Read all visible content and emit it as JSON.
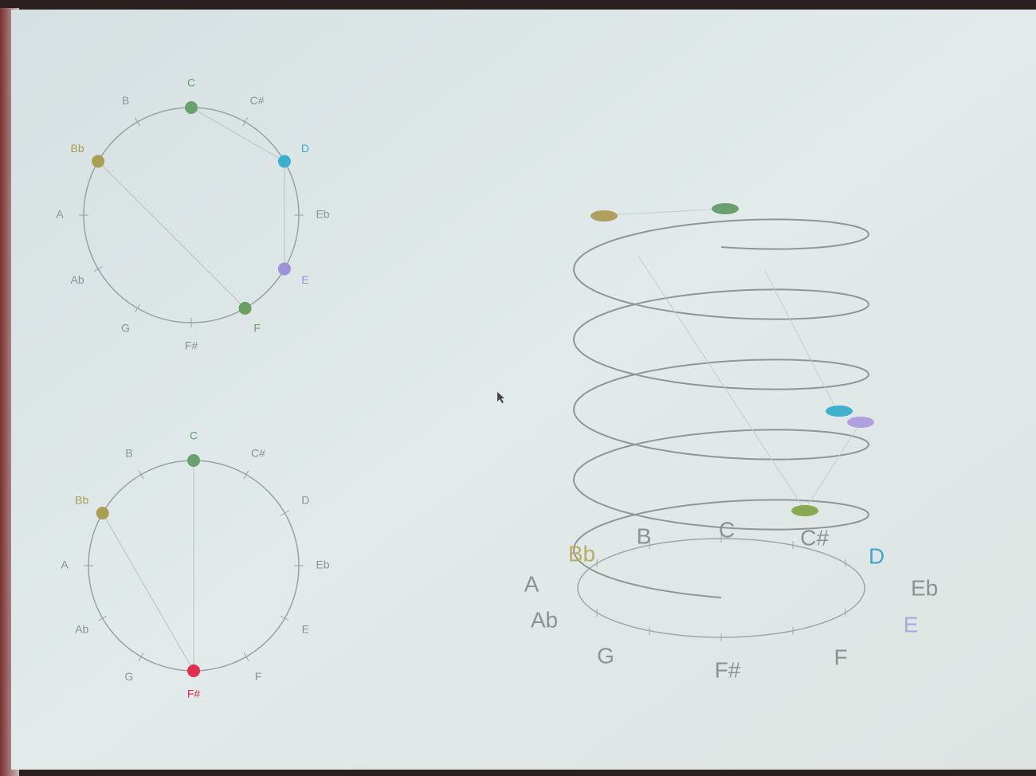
{
  "circles": [
    {
      "labels": [
        "C",
        "C#",
        "D",
        "Eb",
        "E",
        "F",
        "F#",
        "G",
        "Ab",
        "A",
        "Bb",
        "B"
      ]
    },
    {
      "labels": [
        "C",
        "C#",
        "D",
        "Eb",
        "E",
        "F",
        "F#",
        "G",
        "Ab",
        "A",
        "Bb",
        "B"
      ]
    }
  ],
  "helix": {
    "labels": [
      "C",
      "C#",
      "D",
      "Eb",
      "E",
      "F",
      "F#",
      "G",
      "Ab",
      "A",
      "Bb",
      "B"
    ]
  }
}
